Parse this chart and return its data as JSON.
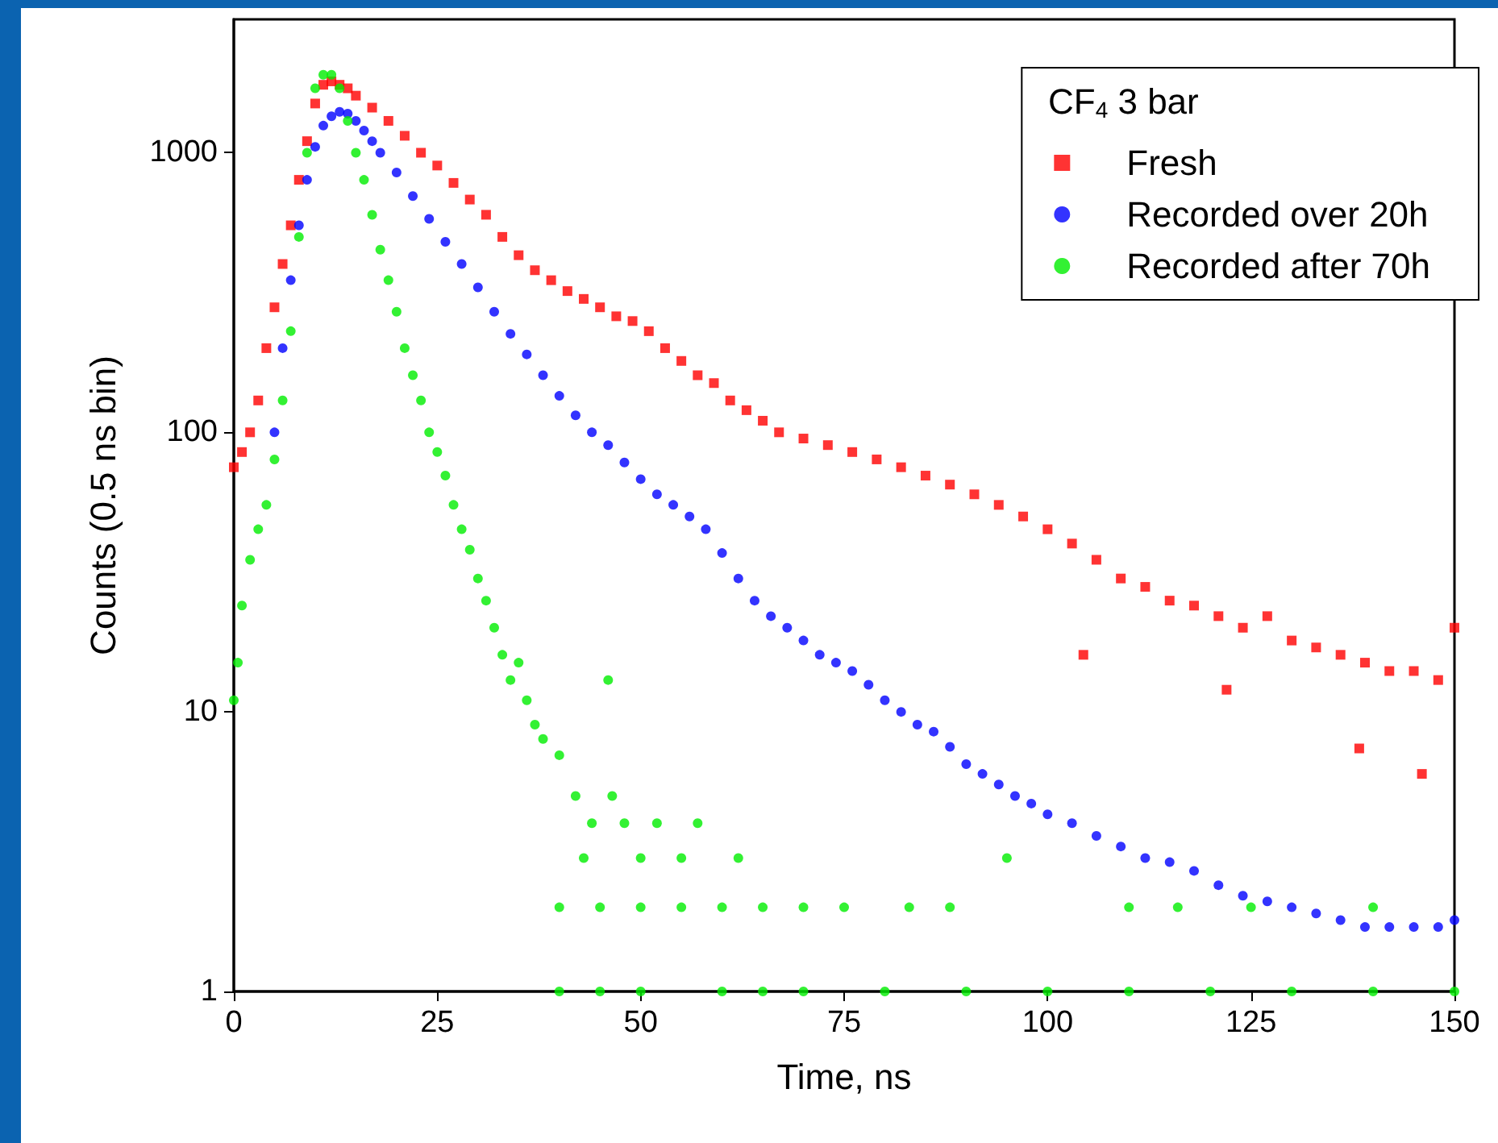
{
  "chart_data": {
    "type": "scatter",
    "xlabel": "Time, ns",
    "ylabel": "Counts (0.5 ns bin)",
    "legend_title": "CF$_{4}$ 3 bar",
    "log": "y",
    "grid": false,
    "legend": "top right",
    "xlim": [
      0,
      150
    ],
    "xticks": [
      0,
      25,
      50,
      75,
      100,
      125,
      150
    ],
    "ylim": [
      1,
      3000
    ],
    "yticks": [
      1,
      10,
      100,
      1000
    ],
    "series": [
      {
        "name": "Fresh",
        "color": "#ff0000",
        "marker": "square",
        "x": [
          0,
          1,
          2,
          3,
          4,
          5,
          6,
          7,
          8,
          9,
          10,
          11,
          12,
          13,
          14,
          15,
          17,
          19,
          21,
          23,
          25,
          27,
          29,
          31,
          33,
          35,
          37,
          39,
          41,
          43,
          45,
          47,
          49,
          51,
          53,
          55,
          57,
          59,
          61,
          63,
          65,
          67,
          70,
          73,
          76,
          79,
          82,
          85,
          88,
          91,
          94,
          97,
          100,
          103,
          104.4,
          106,
          109,
          112,
          115,
          118,
          121,
          122,
          124,
          127,
          130,
          133,
          136,
          138.3,
          139,
          142,
          145,
          146,
          148,
          150
        ],
        "values": [
          75,
          85,
          100,
          130,
          200,
          280,
          400,
          550,
          800,
          1100,
          1500,
          1750,
          1800,
          1750,
          1700,
          1600,
          1450,
          1300,
          1150,
          1000,
          900,
          780,
          680,
          600,
          500,
          430,
          380,
          350,
          320,
          300,
          280,
          260,
          250,
          230,
          200,
          180,
          160,
          150,
          130,
          120,
          110,
          100,
          95,
          90,
          85,
          80,
          75,
          70,
          65,
          60,
          55,
          50,
          45,
          40,
          16,
          35,
          30,
          28,
          25,
          24,
          22,
          12,
          20,
          22,
          18,
          17,
          16,
          7.4,
          15,
          14,
          14,
          6,
          13,
          20
        ]
      },
      {
        "name": "Recorded over 20h",
        "color": "#0000ff",
        "marker": "circle",
        "x": [
          5,
          6,
          7,
          8,
          9,
          10,
          11,
          12,
          13,
          14,
          15,
          16,
          17,
          18,
          20,
          22,
          24,
          26,
          28,
          30,
          32,
          34,
          36,
          38,
          40,
          42,
          44,
          46,
          48,
          50,
          52,
          54,
          56,
          58,
          60,
          62,
          64,
          66,
          68,
          70,
          72,
          74,
          76,
          78,
          80,
          82,
          84,
          86,
          88,
          90,
          92,
          94,
          96,
          98,
          100,
          103,
          106,
          109,
          112,
          115,
          118,
          121,
          124,
          127,
          130,
          133,
          136,
          139,
          142,
          145,
          148,
          150
        ],
        "values": [
          100,
          200,
          350,
          550,
          800,
          1050,
          1250,
          1350,
          1400,
          1380,
          1300,
          1200,
          1100,
          1000,
          850,
          700,
          580,
          480,
          400,
          330,
          270,
          225,
          190,
          160,
          135,
          115,
          100,
          90,
          78,
          68,
          60,
          55,
          50,
          45,
          37,
          30,
          25,
          22,
          20,
          18,
          16,
          15,
          14,
          12.5,
          11,
          10,
          9,
          8.5,
          7.5,
          6.5,
          6,
          5.5,
          5,
          4.7,
          4.3,
          4,
          3.6,
          3.3,
          3,
          2.9,
          2.7,
          2.4,
          2.2,
          2.1,
          2,
          1.9,
          1.8,
          1.7,
          1.7,
          1.7,
          1.7,
          1.8
        ]
      },
      {
        "name": "Recorded after 70h",
        "color": "#00ee00",
        "marker": "circle",
        "x": [
          0,
          0.5,
          1,
          2,
          3,
          4,
          5,
          6,
          7,
          8,
          9,
          10,
          11,
          12,
          13,
          14,
          15,
          16,
          17,
          18,
          19,
          20,
          21,
          22,
          23,
          24,
          25,
          26,
          27,
          28,
          29,
          30,
          31,
          32,
          33,
          34,
          35,
          36,
          37,
          38,
          40,
          40,
          40,
          42,
          43,
          44,
          45,
          45,
          46,
          46.5,
          48,
          50,
          50,
          50,
          52,
          55,
          55,
          57,
          60,
          60,
          62,
          65,
          65,
          70,
          70,
          75,
          80,
          83,
          88,
          90,
          95,
          100,
          110,
          110,
          116,
          120,
          125,
          130,
          140,
          140,
          150
        ],
        "values": [
          11,
          15,
          24,
          35,
          45,
          55,
          80,
          130,
          230,
          500,
          1000,
          1700,
          1900,
          1900,
          1700,
          1300,
          1000,
          800,
          600,
          450,
          350,
          270,
          200,
          160,
          130,
          100,
          85,
          70,
          55,
          45,
          38,
          30,
          25,
          20,
          16,
          13,
          15,
          11,
          9,
          8,
          7,
          2,
          1,
          5,
          3,
          4,
          2,
          1,
          13,
          5,
          4,
          3,
          2,
          1,
          4,
          3,
          2,
          4,
          2,
          1,
          3,
          2,
          1,
          2,
          1,
          2,
          1,
          2,
          2,
          1,
          3,
          1,
          2,
          1,
          2,
          1,
          2,
          1,
          2,
          1,
          1
        ]
      }
    ]
  }
}
